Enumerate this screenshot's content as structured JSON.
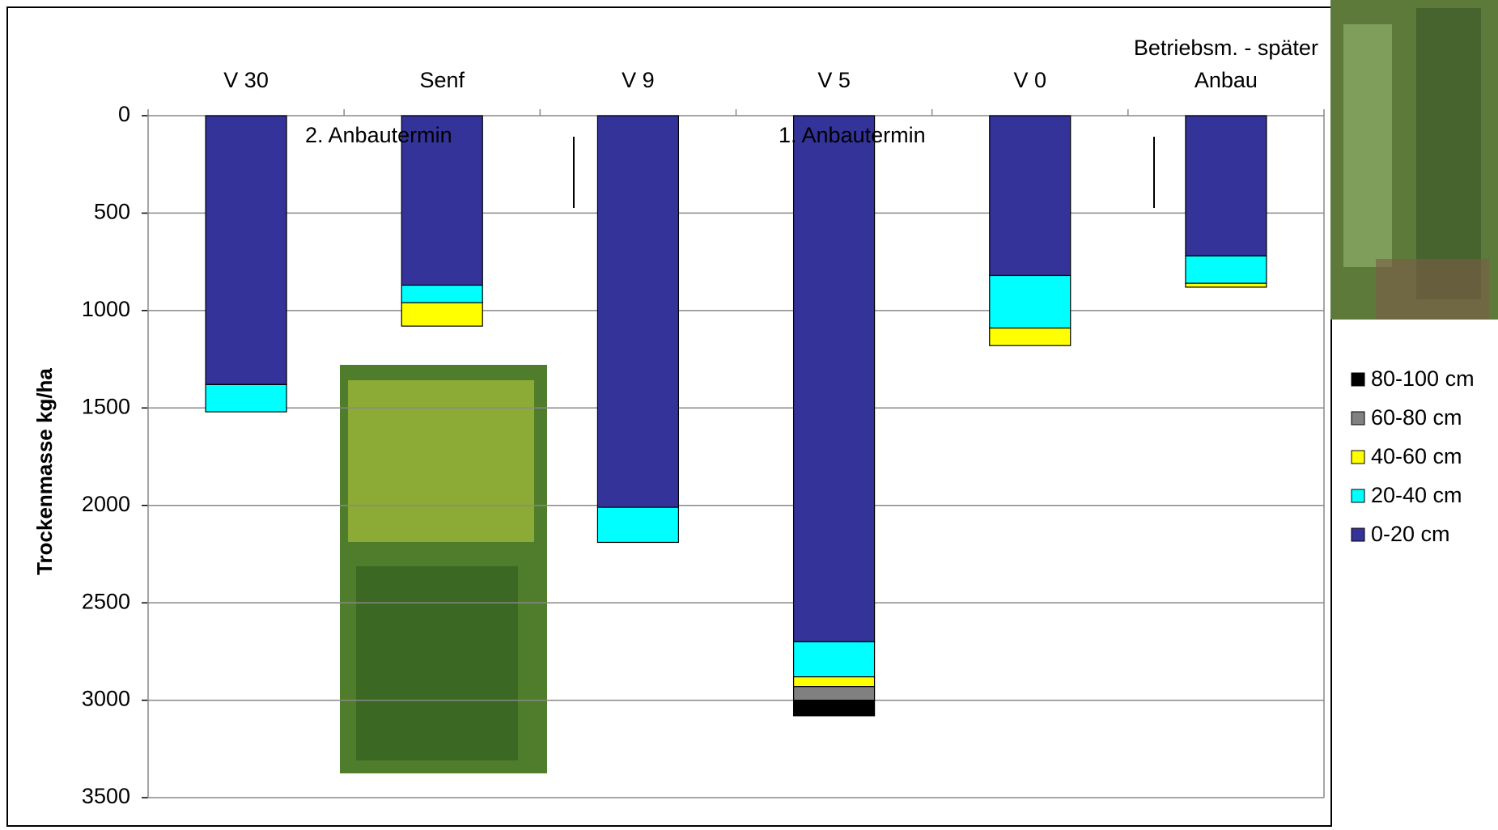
{
  "chart_data": {
    "type": "stacked_bar",
    "y_axis_label": "Trockenmasse kg/ha",
    "categories": [
      "V 30",
      "Senf",
      "V 9",
      "V 5",
      "V 0",
      "Betriebsm. - später Anbau"
    ],
    "series": [
      {
        "name": "0-20 cm",
        "color": "#333399",
        "values": [
          1380,
          870,
          2010,
          2700,
          820,
          720
        ]
      },
      {
        "name": "20-40 cm",
        "color": "#00FFFF",
        "values": [
          140,
          90,
          180,
          180,
          270,
          140
        ]
      },
      {
        "name": "40-60 cm",
        "color": "#FFFF00",
        "values": [
          0,
          120,
          0,
          50,
          90,
          20
        ]
      },
      {
        "name": "60-80 cm",
        "color": "#808080",
        "values": [
          0,
          0,
          0,
          70,
          0,
          0
        ]
      },
      {
        "name": "80-100 cm",
        "color": "#000000",
        "values": [
          0,
          0,
          0,
          80,
          0,
          0
        ]
      }
    ],
    "ylim": [
      0,
      3500
    ],
    "yticks": [
      0,
      500,
      1000,
      1500,
      2000,
      2500,
      3000,
      3500
    ],
    "inverted_y": true,
    "grid": true,
    "annotations": [
      "2. Anbautermin",
      "1. Anbautermin"
    ]
  }
}
